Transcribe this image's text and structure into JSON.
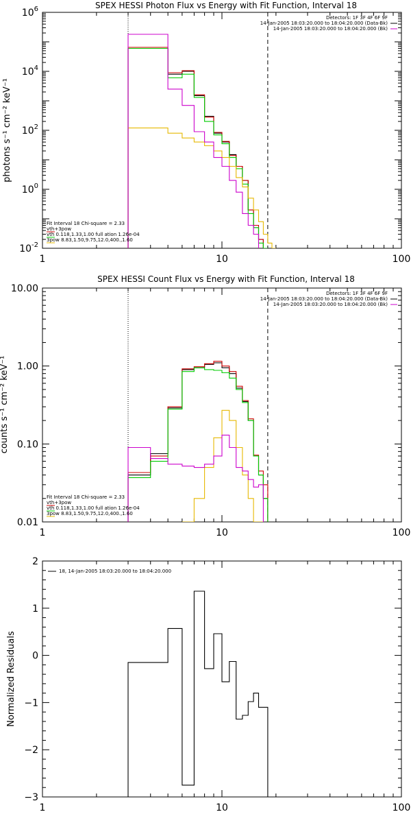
{
  "chart_data": [
    {
      "type": "line",
      "title": "SPEX HESSI Photon Flux vs Energy with Fit Function, Interval 18",
      "xlabel": "",
      "ylabel": "photons s⁻¹ cm⁻² keV⁻¹",
      "xscale": "log",
      "yscale": "log",
      "xlim": [
        1,
        100
      ],
      "ylim": [
        0.01,
        1000000
      ],
      "xticks": [
        "1",
        "10",
        "100"
      ],
      "yticks": [
        {
          "base": "10",
          "exp": "-2",
          "v": 0.01
        },
        {
          "base": "10",
          "exp": "0",
          "v": 1
        },
        {
          "base": "10",
          "exp": "2",
          "v": 100
        },
        {
          "base": "10",
          "exp": "4",
          "v": 10000
        },
        {
          "base": "10",
          "exp": "6",
          "v": 1000000
        }
      ],
      "vlines": [
        {
          "x": 3.0,
          "style": "dotted"
        },
        {
          "x": 18.0,
          "style": "dashed"
        }
      ],
      "legend_top_right": [
        {
          "text": "Detectors: 1F 3F 4F 6F 9F",
          "color": "#000000"
        },
        {
          "text": "14-Jan-2005 18:03:20.000 to 18:04:20.000 (Data-Bk)",
          "color": "#000000"
        },
        {
          "text": "14-Jan-2005 18:03:20.000 to 18:04:20.000 (Bk)",
          "color": "#cc00cc"
        }
      ],
      "legend_bottom_left": [
        {
          "text": "Fit Interval 18    Chi-square = 2.33",
          "color": "#000000"
        },
        {
          "text": "vth+3pow",
          "color": "#cc0000"
        },
        {
          "text": "vth 0.118,1.33,1.00  full ation 1.26e-04",
          "color": "#00cc00"
        },
        {
          "text": "3pow 8.83,1.50,9.75,12.0,400.,1.60",
          "color": "#e6b800"
        }
      ],
      "edges": [
        3,
        4,
        5,
        6,
        7,
        8,
        9,
        10,
        11,
        12,
        13,
        14,
        15,
        16,
        17,
        18,
        19,
        20,
        21,
        22
      ],
      "series": [
        {
          "name": "Data-Bk",
          "color": "#000000",
          "values": [
            60000,
            60000,
            8000,
            10000,
            1500,
            300,
            80,
            40,
            15,
            6,
            2,
            0.2,
            0.05,
            0.02,
            0.01,
            null,
            null,
            null,
            null
          ]
        },
        {
          "name": "vth+3pow",
          "color": "#cc0000",
          "values": [
            65000,
            65000,
            9000,
            10500,
            1600,
            280,
            85,
            42,
            14,
            6,
            2,
            0.2,
            0.06,
            0.02,
            0.01,
            null,
            null,
            null,
            null
          ]
        },
        {
          "name": "vth",
          "color": "#00cc00",
          "values": [
            60000,
            60000,
            6000,
            8000,
            1300,
            200,
            70,
            35,
            12,
            5,
            1.5,
            0.15,
            0.05,
            0.015,
            0.01,
            null,
            null,
            null,
            null
          ]
        },
        {
          "name": "3pow",
          "color": "#e6b800",
          "values": [
            120,
            120,
            80,
            55,
            40,
            30,
            20,
            12,
            6,
            2.5,
            1.2,
            0.5,
            0.2,
            0.08,
            0.03,
            0.015,
            0.01,
            null,
            null
          ]
        },
        {
          "name": "Bk",
          "color": "#cc00cc",
          "values": [
            180000,
            180000,
            2500,
            700,
            90,
            40,
            12,
            6,
            2,
            0.8,
            0.15,
            0.06,
            0.03,
            null,
            null,
            null,
            null,
            null,
            null
          ]
        }
      ]
    },
    {
      "type": "line",
      "title": "SPEX HESSI Count Flux vs Energy with Fit Function, Interval 18",
      "xlabel": "",
      "ylabel": "counts s⁻¹ cm⁻² keV⁻¹",
      "xscale": "log",
      "yscale": "log",
      "xlim": [
        1,
        100
      ],
      "ylim": [
        0.01,
        10
      ],
      "xticks": [
        "1",
        "10",
        "100"
      ],
      "yticks": [
        {
          "label": "0.01",
          "v": 0.01
        },
        {
          "label": "0.10",
          "v": 0.1
        },
        {
          "label": "1.00",
          "v": 1
        },
        {
          "label": "10.00",
          "v": 10
        }
      ],
      "vlines": [
        {
          "x": 3.0,
          "style": "dotted"
        },
        {
          "x": 18.0,
          "style": "dashed"
        }
      ],
      "legend_top_right": [
        {
          "text": "Detectors: 1F 3F 4F 6F 9F",
          "color": "#000000"
        },
        {
          "text": "14-Jan-2005 18:03:20.000 to 18:04:20.000 (Data-Bk)",
          "color": "#000000"
        },
        {
          "text": "14-Jan-2005 18:03:20.000 to 18:04:20.000 (Bk)",
          "color": "#cc00cc"
        }
      ],
      "legend_bottom_left": [
        {
          "text": "Fit Interval 18    Chi-square = 2.33",
          "color": "#000000"
        },
        {
          "text": "vth+3pow",
          "color": "#cc0000"
        },
        {
          "text": "vth 0.118,1.33,1.00  full ation 1.26e-04",
          "color": "#00cc00"
        },
        {
          "text": "3pow 8.83,1.50,9.75,12.0,400.,1.60",
          "color": "#e6b800"
        }
      ],
      "edges": [
        3,
        4,
        5,
        6,
        7,
        8,
        9,
        10,
        11,
        12,
        13,
        14,
        15,
        16,
        17,
        18
      ],
      "series": [
        {
          "name": "Data-Bk",
          "color": "#000000",
          "values": [
            0.04,
            0.075,
            0.29,
            0.9,
            0.95,
            1.05,
            1.1,
            0.95,
            0.8,
            0.52,
            0.35,
            0.2,
            0.07,
            0.04,
            0.02
          ]
        },
        {
          "name": "vth+3pow",
          "color": "#cc0000",
          "values": [
            0.043,
            0.07,
            0.3,
            0.92,
            0.98,
            1.07,
            1.15,
            1.0,
            0.85,
            0.55,
            0.36,
            0.21,
            0.072,
            0.045,
            0.03
          ]
        },
        {
          "name": "vth",
          "color": "#00cc00",
          "values": [
            0.037,
            0.06,
            0.28,
            0.85,
            0.95,
            0.9,
            0.88,
            0.82,
            0.7,
            0.5,
            0.34,
            0.2,
            0.07,
            0.04,
            0.02
          ]
        },
        {
          "name": "3pow",
          "color": "#e6b800",
          "values": [
            null,
            null,
            null,
            0.005,
            0.02,
            0.05,
            0.12,
            0.27,
            0.2,
            0.09,
            0.04,
            0.02,
            0.01,
            0.005,
            null
          ]
        },
        {
          "name": "Bk",
          "color": "#cc00cc",
          "values": [
            0.09,
            0.065,
            0.055,
            0.052,
            0.05,
            0.055,
            0.07,
            0.13,
            0.09,
            0.05,
            0.045,
            0.035,
            0.028,
            0.03,
            null
          ]
        }
      ]
    },
    {
      "type": "line",
      "title": "",
      "xlabel": "",
      "ylabel": "Normalized Residuals",
      "xscale": "log",
      "yscale": "linear",
      "xlim": [
        1,
        100
      ],
      "ylim": [
        -3,
        2
      ],
      "xticks": [
        "1",
        "10",
        "100"
      ],
      "yticks": [
        {
          "label": "−3",
          "v": -3
        },
        {
          "label": "−2",
          "v": -2
        },
        {
          "label": "−1",
          "v": -1
        },
        {
          "label": "0",
          "v": 0
        },
        {
          "label": "1",
          "v": 1
        },
        {
          "label": "2",
          "v": 2
        }
      ],
      "legend_top_left": [
        {
          "text": "18, 14-Jan-2005 18:03:20.000 to 18:04:20.000",
          "color": "#000000"
        }
      ],
      "edges": [
        3,
        4,
        5,
        6,
        7,
        8,
        9,
        10,
        11,
        12,
        13,
        14,
        15,
        16,
        17,
        18
      ],
      "series": [
        {
          "name": "18",
          "color": "#000000",
          "values": [
            -0.15,
            -0.15,
            0.57,
            -2.75,
            1.36,
            -0.28,
            0.46,
            -0.56,
            -0.13,
            -1.35,
            -1.27,
            -0.98,
            -0.8,
            -1.1,
            -1.1
          ]
        }
      ]
    }
  ]
}
